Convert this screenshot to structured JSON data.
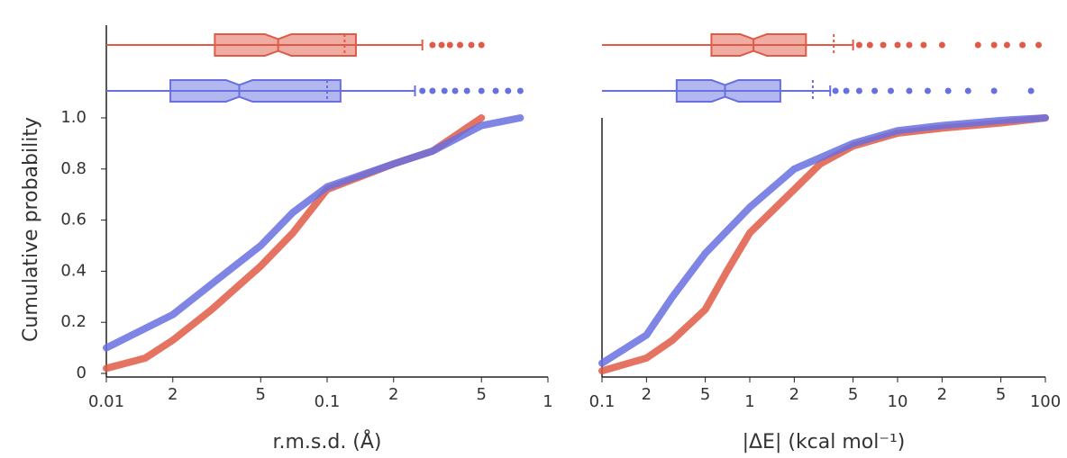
{
  "chart_data": [
    {
      "type": "ecdf",
      "xscale": "log",
      "ylabel": "Cumulative probability",
      "xlabel": "r.m.s.d. (Å)",
      "xlim": [
        0.01,
        1
      ],
      "ylim": [
        0,
        1
      ],
      "xticks": [
        0.01,
        {
          "value": 0.02,
          "label": "2"
        },
        {
          "value": 0.05,
          "label": "5"
        },
        0.1,
        {
          "value": 0.2,
          "label": "2"
        },
        {
          "value": 0.5,
          "label": "5"
        },
        1
      ],
      "yticks": [
        0,
        0.2,
        0.4,
        0.6,
        0.8,
        {
          "value": 1,
          "label": "1.0"
        }
      ],
      "series": [
        {
          "color": "#e05a47",
          "x": [
            0.01,
            0.015,
            0.02,
            0.03,
            0.05,
            0.07,
            0.1,
            0.2,
            0.3,
            0.5
          ],
          "values": [
            0.02,
            0.06,
            0.13,
            0.25,
            0.42,
            0.55,
            0.72,
            0.82,
            0.87,
            1.0
          ],
          "box": {
            "whislo": 0.01,
            "q1": 0.031,
            "med": 0.06,
            "q3": 0.135,
            "whishi": 0.27,
            "mean": 0.12
          },
          "outliers": [
            0.3,
            0.33,
            0.36,
            0.4,
            0.45,
            0.5
          ]
        },
        {
          "color": "#6870e0",
          "x": [
            0.01,
            0.02,
            0.03,
            0.05,
            0.07,
            0.1,
            0.2,
            0.3,
            0.5,
            0.75
          ],
          "values": [
            0.1,
            0.23,
            0.35,
            0.5,
            0.63,
            0.73,
            0.82,
            0.87,
            0.97,
            1.0
          ],
          "box": {
            "whislo": 0.01,
            "q1": 0.0195,
            "med": 0.04,
            "q3": 0.115,
            "whishi": 0.25,
            "mean": 0.1
          },
          "outliers": [
            0.27,
            0.3,
            0.34,
            0.38,
            0.43,
            0.5,
            0.58,
            0.66,
            0.75
          ]
        }
      ]
    },
    {
      "type": "ecdf",
      "xscale": "log",
      "xlabel": "|ΔE| (kcal mol⁻¹)",
      "xlim": [
        0.1,
        100
      ],
      "ylim": [
        0,
        1
      ],
      "xticks": [
        0.1,
        {
          "value": 0.2,
          "label": "2"
        },
        {
          "value": 0.5,
          "label": "5"
        },
        1,
        {
          "value": 2,
          "label": "2"
        },
        {
          "value": 5,
          "label": "5"
        },
        10,
        {
          "value": 20,
          "label": "2"
        },
        {
          "value": 50,
          "label": "5"
        },
        100
      ],
      "yticks": [
        0,
        0.2,
        0.4,
        0.6,
        0.8,
        1
      ],
      "series": [
        {
          "color": "#e05a47",
          "x": [
            0.1,
            0.2,
            0.3,
            0.5,
            0.7,
            1,
            2,
            3,
            5,
            10,
            20,
            50,
            100
          ],
          "values": [
            0.01,
            0.06,
            0.13,
            0.25,
            0.4,
            0.55,
            0.72,
            0.82,
            0.89,
            0.94,
            0.96,
            0.98,
            1.0
          ],
          "box": {
            "whislo": 0.1,
            "q1": 0.55,
            "med": 1.06,
            "q3": 2.4,
            "whishi": 5,
            "mean": 3.7
          },
          "outliers": [
            5.5,
            6.5,
            8,
            10,
            12,
            15,
            20,
            35,
            45,
            55,
            70,
            90
          ]
        },
        {
          "color": "#6870e0",
          "x": [
            0.1,
            0.2,
            0.3,
            0.5,
            1,
            2,
            5,
            10,
            20,
            50,
            100
          ],
          "values": [
            0.04,
            0.15,
            0.3,
            0.47,
            0.65,
            0.8,
            0.9,
            0.95,
            0.97,
            0.99,
            1.0
          ],
          "box": {
            "whislo": 0.1,
            "q1": 0.32,
            "med": 0.68,
            "q3": 1.61,
            "whishi": 3.5,
            "mean": 2.67
          },
          "outliers": [
            3.8,
            4.5,
            5.5,
            7,
            9,
            12,
            16,
            22,
            30,
            45,
            80
          ]
        }
      ]
    }
  ]
}
